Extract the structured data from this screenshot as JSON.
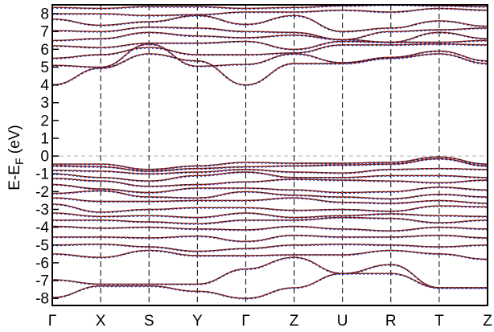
{
  "chart_data": {
    "type": "line",
    "title": "",
    "xlabel": "",
    "ylabel_parts": {
      "main": "E-E",
      "sub": "F",
      "unit": " (eV)"
    },
    "ylim": [
      -8.4,
      8.5
    ],
    "y_ticks": [
      -8,
      -7,
      -6,
      -5,
      -4,
      -3,
      -2,
      -1,
      0,
      1,
      2,
      3,
      4,
      5,
      6,
      7,
      8
    ],
    "k_points": [
      {
        "label": "Γ",
        "x": 0
      },
      {
        "label": "X",
        "x": 1
      },
      {
        "label": "S",
        "x": 2
      },
      {
        "label": "Y",
        "x": 3
      },
      {
        "label": "Γ",
        "x": 4
      },
      {
        "label": "Z",
        "x": 5
      },
      {
        "label": "U",
        "x": 6
      },
      {
        "label": "R",
        "x": 7
      },
      {
        "label": "T",
        "x": 8
      },
      {
        "label": "Z",
        "x": 9
      }
    ],
    "fermi_level": 0,
    "grid": false,
    "legend": "none",
    "colors": {
      "band_primary": "#1a1a1a",
      "band_overlay_red": "#e0201c",
      "band_overlay_blue": "#2030e0",
      "vertical_dashed": "#000000",
      "fermi_dashed": "#b0b0b0"
    },
    "series": [
      {
        "values": [
          -0.45,
          -0.45,
          -0.75,
          -0.55,
          -0.35,
          -0.4,
          -0.4,
          -0.35,
          -0.05,
          -0.45
        ]
      },
      {
        "values": [
          -0.55,
          -0.6,
          -0.85,
          -0.7,
          -0.6,
          -0.55,
          -0.5,
          -0.45,
          -0.15,
          -0.55
        ]
      },
      {
        "values": [
          -0.8,
          -0.85,
          -1.0,
          -0.9,
          -0.75,
          -0.9,
          -0.95,
          -0.75,
          -0.7,
          -0.75
        ]
      },
      {
        "values": [
          -1.0,
          -1.2,
          -1.4,
          -1.1,
          -0.9,
          -1.2,
          -1.2,
          -1.1,
          -1.1,
          -1.2
        ]
      },
      {
        "values": [
          -1.25,
          -1.4,
          -1.7,
          -1.6,
          -1.45,
          -1.3,
          -1.35,
          -1.4,
          -1.5,
          -1.35
        ]
      },
      {
        "values": [
          -1.6,
          -1.85,
          -2.05,
          -1.8,
          -1.8,
          -1.9,
          -2.05,
          -2.0,
          -1.75,
          -1.9
        ]
      },
      {
        "values": [
          -2.1,
          -1.95,
          -2.3,
          -2.35,
          -2.0,
          -2.2,
          -2.3,
          -2.4,
          -2.15,
          -2.3
        ]
      },
      {
        "values": [
          -2.35,
          -2.55,
          -2.55,
          -2.5,
          -2.5,
          -2.35,
          -2.6,
          -2.65,
          -2.5,
          -2.65
        ]
      },
      {
        "values": [
          -2.7,
          -3.15,
          -3.0,
          -2.9,
          -2.9,
          -3.05,
          -3.0,
          -3.1,
          -2.8,
          -2.85
        ]
      },
      {
        "values": [
          -3.2,
          -3.4,
          -3.35,
          -3.45,
          -3.2,
          -3.45,
          -3.35,
          -3.25,
          -3.35,
          -3.4
        ]
      },
      {
        "values": [
          -3.6,
          -3.6,
          -3.7,
          -3.8,
          -3.6,
          -3.6,
          -3.45,
          -3.5,
          -3.75,
          -3.6
        ]
      },
      {
        "values": [
          -3.95,
          -4.05,
          -4.0,
          -4.1,
          -4.15,
          -3.95,
          -4.1,
          -4.2,
          -4.0,
          -4.1
        ]
      },
      {
        "values": [
          -4.55,
          -4.55,
          -4.6,
          -4.5,
          -4.8,
          -4.45,
          -4.55,
          -4.55,
          -4.45,
          -4.6
        ]
      },
      {
        "values": [
          -5.0,
          -4.95,
          -5.1,
          -5.35,
          -5.2,
          -5.0,
          -4.95,
          -5.0,
          -5.1,
          -5.0
        ]
      },
      {
        "values": [
          -5.5,
          -5.7,
          -5.3,
          -5.6,
          -5.6,
          -5.55,
          -5.55,
          -5.3,
          -5.5,
          -5.8
        ]
      },
      {
        "values": [
          -6.95,
          -7.2,
          -7.2,
          -7.2,
          -6.35,
          -5.7,
          -6.6,
          -6.1,
          -7.4,
          -7.4
        ]
      },
      {
        "values": [
          -7.95,
          -7.3,
          -7.3,
          -7.6,
          -8.0,
          -7.4,
          -6.6,
          -6.6,
          -7.4,
          -7.4
        ]
      },
      {
        "values": [
          4.0,
          4.95,
          5.75,
          5.35,
          4.0,
          5.2,
          5.2,
          5.5,
          5.75,
          5.2
        ]
      },
      {
        "values": [
          5.1,
          5.0,
          6.3,
          5.05,
          5.15,
          5.75,
          5.25,
          5.55,
          5.9,
          5.35
        ]
      },
      {
        "values": [
          5.5,
          5.7,
          6.1,
          5.7,
          5.7,
          5.8,
          6.25,
          6.25,
          6.3,
          6.25
        ]
      },
      {
        "values": [
          6.2,
          6.1,
          6.35,
          6.35,
          6.45,
          6.0,
          6.45,
          6.4,
          6.4,
          6.5
        ]
      },
      {
        "values": [
          6.5,
          6.6,
          6.95,
          6.75,
          6.65,
          6.8,
          6.55,
          6.4,
          6.95,
          6.6
        ]
      },
      {
        "values": [
          7.05,
          7.0,
          7.25,
          7.2,
          7.0,
          6.95,
          6.55,
          7.0,
          7.1,
          7.2
        ]
      },
      {
        "values": [
          7.7,
          7.35,
          7.55,
          7.9,
          7.4,
          7.9,
          7.0,
          7.2,
          7.6,
          7.3
        ]
      },
      {
        "values": [
          8.0,
          8.0,
          7.9,
          7.95,
          8.1,
          8.1,
          8.2,
          8.1,
          8.3,
          8.2
        ]
      },
      {
        "values": [
          8.35,
          8.3,
          8.4,
          8.4,
          8.3,
          8.35,
          8.45,
          8.5,
          8.45,
          8.4
        ]
      }
    ]
  }
}
